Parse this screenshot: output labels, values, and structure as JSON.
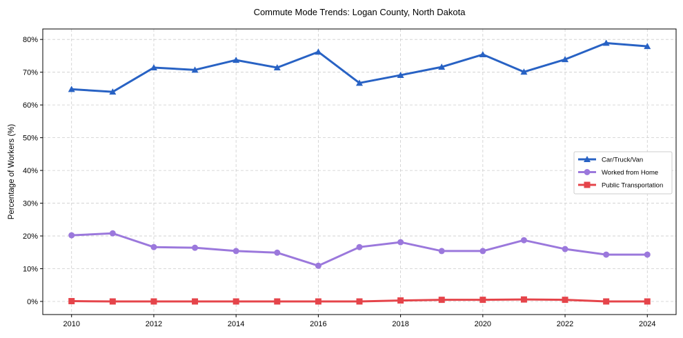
{
  "chart_data": {
    "type": "line",
    "title": "Commute Mode Trends: Logan County, North Dakota",
    "xlabel": "",
    "ylabel": "Percentage of Workers (%)",
    "x": [
      2010,
      2011,
      2012,
      2013,
      2014,
      2015,
      2016,
      2017,
      2018,
      2019,
      2020,
      2021,
      2022,
      2023,
      2024
    ],
    "xticks": [
      "2010",
      "2012",
      "2014",
      "2016",
      "2018",
      "2020",
      "2022",
      "2024"
    ],
    "xtick_values": [
      2010,
      2012,
      2014,
      2016,
      2018,
      2020,
      2022,
      2024
    ],
    "yticks": [
      "0%",
      "10%",
      "20%",
      "30%",
      "40%",
      "50%",
      "60%",
      "70%",
      "80%"
    ],
    "ytick_values": [
      0,
      10,
      20,
      30,
      40,
      50,
      60,
      70,
      80
    ],
    "xlim": [
      2009.3,
      2024.7
    ],
    "ylim": [
      -4,
      83.2
    ],
    "grid": true,
    "legend_position": "center-right",
    "series": [
      {
        "name": "Car/Truck/Van",
        "color": "#2862c4",
        "marker": "triangle",
        "values": [
          64.8,
          64.0,
          71.4,
          70.7,
          73.7,
          71.4,
          76.2,
          66.7,
          69.1,
          71.6,
          75.4,
          70.1,
          73.9,
          78.9,
          77.9
        ]
      },
      {
        "name": "Worked from Home",
        "color": "#9b78dc",
        "marker": "circle",
        "values": [
          20.2,
          20.8,
          16.6,
          16.4,
          15.4,
          14.9,
          10.9,
          16.6,
          18.1,
          15.4,
          15.4,
          18.7,
          16.0,
          14.3,
          14.3
        ]
      },
      {
        "name": "Public Transportation",
        "color": "#e5444a",
        "marker": "square",
        "values": [
          0.1,
          0.0,
          0.0,
          0.0,
          0.0,
          0.0,
          0.0,
          0.0,
          0.3,
          0.5,
          0.5,
          0.6,
          0.5,
          0.0,
          0.0
        ]
      }
    ]
  }
}
